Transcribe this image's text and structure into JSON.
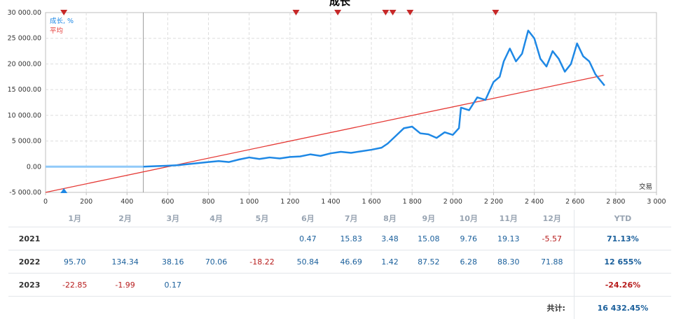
{
  "chart_data": {
    "type": "line",
    "title": "成长",
    "xlabel": "交易",
    "ylabel": "",
    "xlim": [
      0,
      3000
    ],
    "ylim": [
      -5000,
      30000
    ],
    "x_ticks": [
      "0",
      "200",
      "400",
      "600",
      "800",
      "1 000",
      "1 200",
      "1 400",
      "1 600",
      "1 800",
      "2 000",
      "2 200",
      "2 400",
      "2 600",
      "2 800",
      "3 000"
    ],
    "x_tick_values": [
      0,
      200,
      400,
      600,
      800,
      1000,
      1200,
      1400,
      1600,
      1800,
      2000,
      2200,
      2400,
      2600,
      2800,
      3000
    ],
    "y_ticks": [
      "-5 000.00",
      "0.00",
      "5 000.00",
      "10 000.00",
      "15 000.00",
      "20 000.00",
      "25 000.00",
      "30 000.00"
    ],
    "y_tick_values": [
      -5000,
      0,
      5000,
      10000,
      15000,
      20000,
      25000,
      30000
    ],
    "grid": true,
    "legend_position": "top-left",
    "series": [
      {
        "name": "成长, %",
        "color": "#1e88e5",
        "points": [
          [
            0,
            0
          ],
          [
            480,
            0
          ],
          [
            520,
            80
          ],
          [
            600,
            200
          ],
          [
            650,
            300
          ],
          [
            700,
            500
          ],
          [
            750,
            700
          ],
          [
            800,
            900
          ],
          [
            850,
            1100
          ],
          [
            900,
            900
          ],
          [
            950,
            1400
          ],
          [
            1000,
            1800
          ],
          [
            1050,
            1500
          ],
          [
            1100,
            1800
          ],
          [
            1150,
            1600
          ],
          [
            1200,
            1900
          ],
          [
            1250,
            2000
          ],
          [
            1300,
            2400
          ],
          [
            1350,
            2100
          ],
          [
            1400,
            2600
          ],
          [
            1450,
            2900
          ],
          [
            1500,
            2700
          ],
          [
            1550,
            3000
          ],
          [
            1600,
            3300
          ],
          [
            1650,
            3700
          ],
          [
            1680,
            4500
          ],
          [
            1720,
            6000
          ],
          [
            1760,
            7500
          ],
          [
            1800,
            7800
          ],
          [
            1840,
            6500
          ],
          [
            1880,
            6300
          ],
          [
            1920,
            5600
          ],
          [
            1960,
            6700
          ],
          [
            2000,
            6200
          ],
          [
            2030,
            7500
          ],
          [
            2040,
            11500
          ],
          [
            2080,
            11000
          ],
          [
            2120,
            13500
          ],
          [
            2160,
            13000
          ],
          [
            2200,
            16500
          ],
          [
            2230,
            17500
          ],
          [
            2250,
            20500
          ],
          [
            2280,
            23000
          ],
          [
            2310,
            20500
          ],
          [
            2340,
            22000
          ],
          [
            2370,
            26500
          ],
          [
            2400,
            25000
          ],
          [
            2430,
            21000
          ],
          [
            2460,
            19500
          ],
          [
            2490,
            22500
          ],
          [
            2520,
            21000
          ],
          [
            2550,
            18500
          ],
          [
            2580,
            20000
          ],
          [
            2610,
            24000
          ],
          [
            2640,
            21500
          ],
          [
            2670,
            20500
          ],
          [
            2700,
            18000
          ],
          [
            2720,
            17000
          ],
          [
            2745,
            15800
          ]
        ]
      },
      {
        "name": "平均",
        "color": "#e53935",
        "points": [
          [
            0,
            -5000
          ],
          [
            2740,
            17800
          ]
        ]
      }
    ],
    "markers": {
      "color": "#c62828",
      "top_x": [
        90,
        1230,
        1435,
        1670,
        1705,
        1790,
        2210
      ],
      "bottom_x": [
        90
      ]
    },
    "flat_segment": {
      "color": "#90caf9",
      "x": [
        0,
        480
      ],
      "y": 0
    },
    "divider_x": 480
  },
  "table": {
    "headers": [
      "1月",
      "2月",
      "3月",
      "4月",
      "5月",
      "6月",
      "7月",
      "8月",
      "9月",
      "10月",
      "11月",
      "12月"
    ],
    "ytd_header": "YTD",
    "rows": [
      {
        "year": "2021",
        "values": [
          "",
          "",
          "",
          "",
          "",
          "0.47",
          "15.83",
          "3.48",
          "15.08",
          "9.76",
          "19.13",
          "-5.57"
        ],
        "ytd": "71.13%"
      },
      {
        "year": "2022",
        "values": [
          "95.70",
          "134.34",
          "38.16",
          "70.06",
          "-18.22",
          "50.84",
          "46.69",
          "1.42",
          "87.52",
          "6.28",
          "88.30",
          "71.88"
        ],
        "ytd": "12 655%"
      },
      {
        "year": "2023",
        "values": [
          "-22.85",
          "-1.99",
          "0.17",
          "",
          "",
          "",
          "",
          "",
          "",
          "",
          "",
          ""
        ],
        "ytd": "-24.26%"
      }
    ],
    "total_label": "共计:",
    "total_value": "16 432.45%"
  }
}
